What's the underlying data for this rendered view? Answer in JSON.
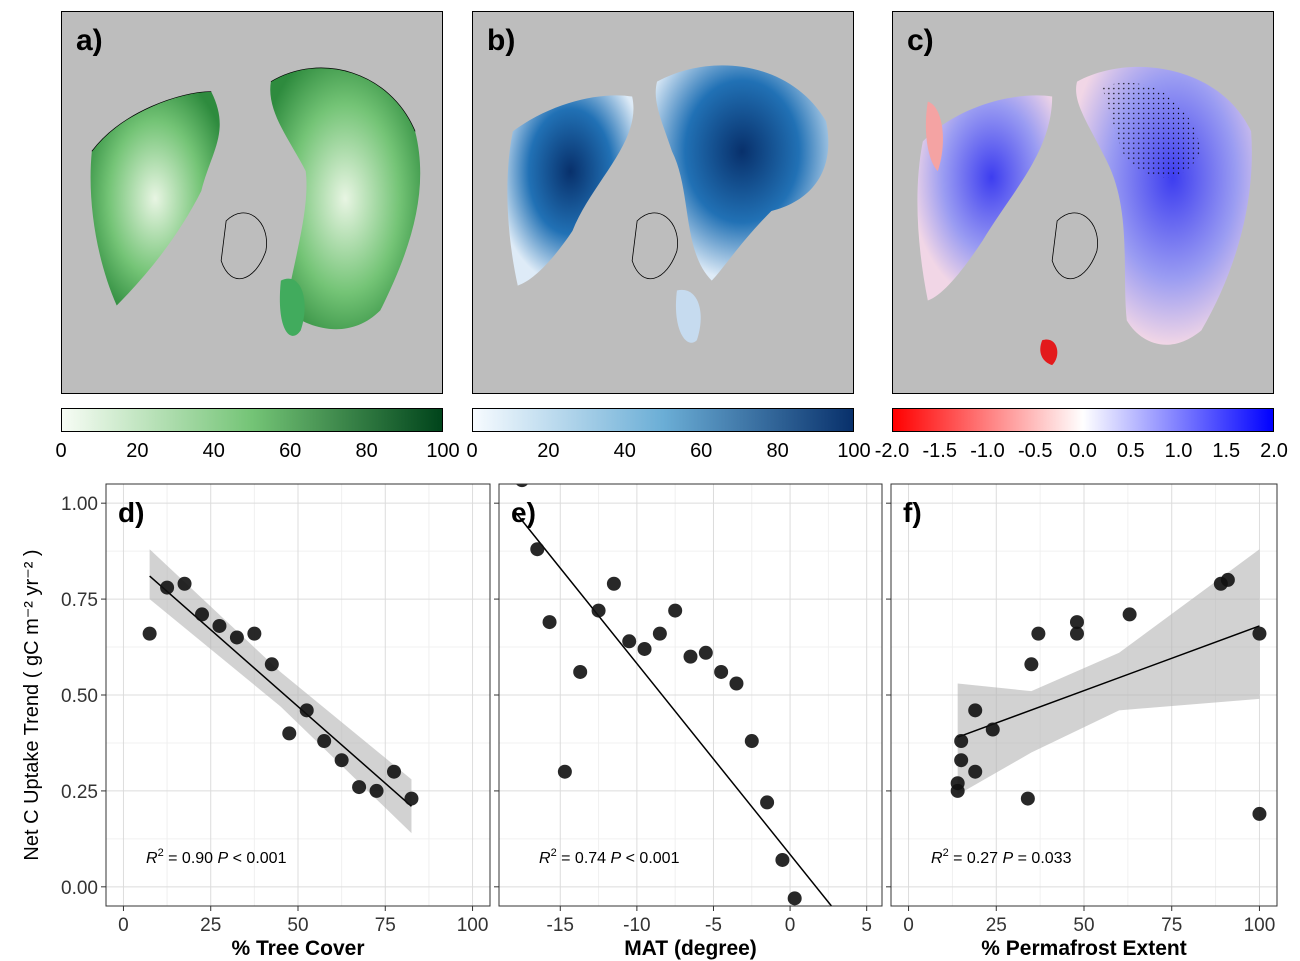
{
  "maps": [
    {
      "label": "a)",
      "colorbar": {
        "ticks": [
          "0",
          "20",
          "40",
          "60",
          "80",
          "100"
        ],
        "colors": [
          "#f7fcf5",
          "#74c476",
          "#00441b"
        ]
      }
    },
    {
      "label": "b)",
      "colorbar": {
        "ticks": [
          "0",
          "20",
          "40",
          "60",
          "80",
          "100"
        ],
        "colors": [
          "#f7fbff",
          "#6baed6",
          "#08306b"
        ]
      }
    },
    {
      "label": "c)",
      "colorbar": {
        "ticks": [
          "-2.0",
          "-1.5",
          "-1.0",
          "-0.5",
          "0.0",
          "0.5",
          "1.0",
          "1.5",
          "2.0"
        ],
        "colors": [
          "#ff0000",
          "#ffffff",
          "#0000ff"
        ]
      }
    }
  ],
  "ylabel": "Net C Uptake Trend ( gC m⁻² yr⁻² )",
  "chart_data": [
    {
      "type": "scatter",
      "label": "d)",
      "xlabel": "% Tree Cover",
      "xlim": [
        -5,
        105
      ],
      "ylim": [
        -0.05,
        1.05
      ],
      "xticks": [
        0,
        25,
        50,
        75,
        100
      ],
      "yticks": [
        0.0,
        0.25,
        0.5,
        0.75,
        1.0
      ],
      "ytick_labels": [
        "0.00",
        "0.25",
        "0.50",
        "0.75",
        "1.00"
      ],
      "x": [
        7.5,
        12.5,
        17.5,
        22.5,
        27.5,
        32.5,
        37.5,
        42.5,
        47.5,
        52.5,
        57.5,
        62.5,
        67.5,
        72.5,
        77.5,
        82.5
      ],
      "y": [
        0.66,
        0.78,
        0.79,
        0.71,
        0.68,
        0.65,
        0.66,
        0.58,
        0.4,
        0.46,
        0.38,
        0.33,
        0.26,
        0.25,
        0.3,
        0.23
      ],
      "fit": {
        "x": [
          7.5,
          82.5
        ],
        "y": [
          0.81,
          0.21
        ]
      },
      "band": {
        "x": [
          7.5,
          45,
          82.5
        ],
        "upper": [
          0.88,
          0.56,
          0.28
        ],
        "lower": [
          0.75,
          0.47,
          0.14
        ]
      },
      "r2_text": "= 0.90",
      "p_text": "< 0.001"
    },
    {
      "type": "scatter",
      "label": "e)",
      "xlabel": "MAT (degree)",
      "xlim": [
        -19,
        6
      ],
      "ylim": [
        -0.05,
        1.05
      ],
      "xticks": [
        -15,
        -10,
        -5,
        0,
        5
      ],
      "yticks": [
        0.0,
        0.25,
        0.5,
        0.75,
        1.0
      ],
      "x": [
        -17.5,
        -16.5,
        -15.7,
        -14.7,
        -13.7,
        -12.5,
        -11.5,
        -10.5,
        -9.5,
        -8.5,
        -7.5,
        -6.5,
        -5.5,
        -4.5,
        -3.5,
        -2.5,
        -1.5,
        -0.5,
        0.3
      ],
      "y": [
        1.06,
        0.88,
        0.69,
        0.3,
        0.56,
        0.72,
        0.79,
        0.64,
        0.62,
        0.66,
        0.72,
        0.6,
        0.61,
        0.56,
        0.53,
        0.38,
        0.22,
        0.07,
        -0.03
      ],
      "fit": {
        "x": [
          -18,
          2.7
        ],
        "y": [
          0.98,
          -0.05
        ]
      },
      "r2_text": "= 0.74",
      "p_text": "< 0.001"
    },
    {
      "type": "scatter",
      "label": "f)",
      "xlabel": "% Permafrost Extent",
      "xlim": [
        -5,
        105
      ],
      "ylim": [
        -0.05,
        1.05
      ],
      "xticks": [
        0,
        25,
        50,
        75,
        100
      ],
      "x": [
        14,
        14,
        15,
        15,
        19,
        19,
        24,
        34,
        35,
        37,
        48,
        48,
        63,
        89,
        91,
        100,
        100
      ],
      "y": [
        0.25,
        0.27,
        0.33,
        0.38,
        0.3,
        0.46,
        0.41,
        0.23,
        0.58,
        0.66,
        0.69,
        0.66,
        0.71,
        0.79,
        0.8,
        0.66,
        0.19
      ],
      "fit": {
        "x": [
          14,
          100
        ],
        "y": [
          0.39,
          0.68
        ]
      },
      "band": {
        "x": [
          14,
          35,
          60,
          100
        ],
        "upper": [
          0.53,
          0.51,
          0.61,
          0.88
        ],
        "lower": [
          0.24,
          0.35,
          0.46,
          0.49
        ]
      },
      "r2_text": "= 0.27",
      "p_text": "= 0.033"
    }
  ]
}
